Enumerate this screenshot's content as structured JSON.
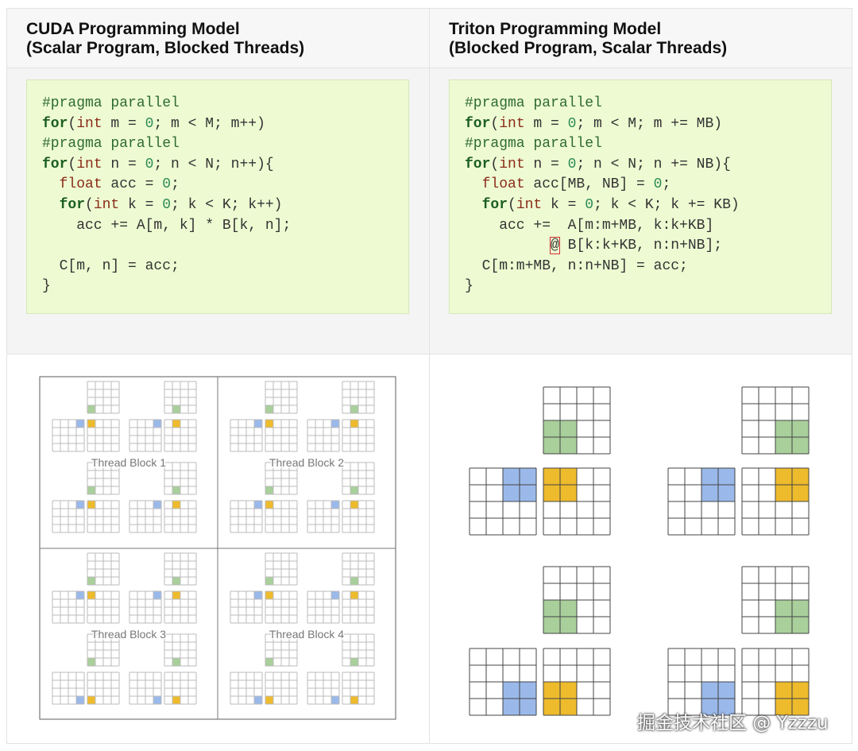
{
  "panels": [
    {
      "title_lines": [
        "CUDA Programming Model",
        "(Scalar Program, Blocked Threads)"
      ],
      "code": [
        [
          {
            "text": "#pragma parallel",
            "color": "#2e6b2e"
          }
        ],
        [
          {
            "text": "for",
            "color": "#1b5e20",
            "weight": "bold"
          },
          "(",
          {
            "text": "int",
            "color": "#8b2b1a"
          },
          " m = ",
          {
            "text": "0",
            "color": "#2e8b57"
          },
          "; m < M; m++)"
        ],
        [
          {
            "text": "#pragma parallel",
            "color": "#2e6b2e"
          }
        ],
        [
          {
            "text": "for",
            "color": "#1b5e20",
            "weight": "bold"
          },
          "(",
          {
            "text": "int",
            "color": "#8b2b1a"
          },
          " n = ",
          {
            "text": "0",
            "color": "#2e8b57"
          },
          "; n < N; n++){"
        ],
        [
          "  ",
          {
            "text": "float",
            "color": "#8b2b1a"
          },
          " acc = ",
          {
            "text": "0",
            "color": "#2e8b57"
          },
          ";"
        ],
        [
          "  ",
          {
            "text": "for",
            "color": "#1b5e20",
            "weight": "bold"
          },
          "(",
          {
            "text": "int",
            "color": "#8b2b1a"
          },
          " k = ",
          {
            "text": "0",
            "color": "#2e8b57"
          },
          "; k < K; k++)"
        ],
        [
          "    acc += A[m, k] * B[k, n];"
        ],
        [],
        [
          "  C[m, n] = acc;"
        ],
        [
          "}"
        ]
      ]
    },
    {
      "title_lines": [
        "Triton Programming Model",
        "(Blocked Program, Scalar Threads)"
      ],
      "code": [
        [
          {
            "text": "#pragma parallel",
            "color": "#2e6b2e"
          }
        ],
        [
          {
            "text": "for",
            "color": "#1b5e20",
            "weight": "bold"
          },
          "(",
          {
            "text": "int",
            "color": "#8b2b1a"
          },
          " m = ",
          {
            "text": "0",
            "color": "#2e8b57"
          },
          "; m < M; m += MB)"
        ],
        [
          {
            "text": "#pragma parallel",
            "color": "#2e6b2e"
          }
        ],
        [
          {
            "text": "for",
            "color": "#1b5e20",
            "weight": "bold"
          },
          "(",
          {
            "text": "int",
            "color": "#8b2b1a"
          },
          " n = ",
          {
            "text": "0",
            "color": "#2e8b57"
          },
          "; n < N; n += NB){"
        ],
        [
          "  ",
          {
            "text": "float",
            "color": "#8b2b1a"
          },
          " acc[MB, NB] = ",
          {
            "text": "0",
            "color": "#2e8b57"
          },
          ";"
        ],
        [
          "  ",
          {
            "text": "for",
            "color": "#1b5e20",
            "weight": "bold"
          },
          "(",
          {
            "text": "int",
            "color": "#8b2b1a"
          },
          " k = ",
          {
            "text": "0",
            "color": "#2e8b57"
          },
          "; k < K; k += KB)"
        ],
        [
          "    acc +=  A[m:m+MB, k:k+KB]"
        ],
        [
          "          ",
          {
            "text": "@",
            "border": "#d32f2f"
          },
          " B[k:k+KB, n:n+NB];"
        ],
        [
          "  C[m:m+MB, n:n+NB] = acc;"
        ],
        [
          "}"
        ]
      ]
    }
  ],
  "thread_blocks": [
    "Thread Block 1",
    "Thread Block 2",
    "Thread Block 3",
    "Thread Block 4"
  ],
  "watermark": "掘金技术社区 @ Yzzzu"
}
